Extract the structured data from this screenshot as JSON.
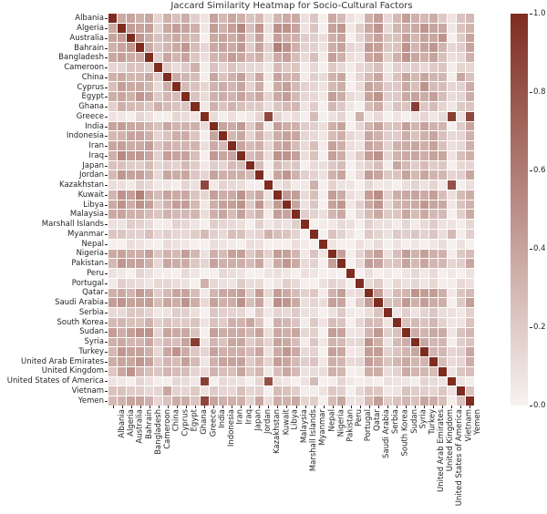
{
  "chart_data": {
    "type": "heatmap",
    "title": "Jaccard Similarity Heatmap for Socio-Cultural Factors",
    "categories": [
      "Albania",
      "Algeria",
      "Australia",
      "Bahrain",
      "Bangladesh",
      "Cameroon",
      "China",
      "Cyprus",
      "Egypt",
      "Ghana",
      "Greece",
      "India",
      "Indonesia",
      "Iran",
      "Iraq",
      "Japan",
      "Jordan",
      "Kazakhstan",
      "Kuwait",
      "Libya",
      "Malaysia",
      "Marshall Islands",
      "Myanmar",
      "Nepal",
      "Nigeria",
      "Pakistan",
      "Peru",
      "Portugal",
      "Qatar",
      "Saudi Arabia",
      "Serbia",
      "South Korea",
      "Sudan",
      "Syria",
      "Turkey",
      "United Arab Emirates",
      "United Kingdom",
      "United States of America",
      "Vietnam",
      "Yemen"
    ],
    "xlabel": "",
    "ylabel": "",
    "value_range": [
      0.0,
      1.0
    ],
    "diagonal_value": 1.0,
    "legend_position": "right-colorbar",
    "grid": "white-gridlines",
    "colorbar": {
      "ticks": [
        "1.0",
        "0.8",
        "0.6",
        "0.4",
        "0.2",
        "0.0"
      ],
      "top_value": 1.0,
      "bottom_value": 0.0
    },
    "colors": {
      "low": "#f7f2f0",
      "high": "#7e2c20",
      "background": "#ffffff",
      "gridline": "#ffffff",
      "tick_text": "#262626",
      "title_text": "#333333"
    },
    "row_intensity": [
      0.45,
      0.55,
      0.5,
      0.55,
      0.5,
      0.25,
      0.45,
      0.45,
      0.5,
      0.35,
      0.1,
      0.5,
      0.45,
      0.5,
      0.55,
      0.3,
      0.5,
      0.12,
      0.55,
      0.55,
      0.45,
      0.15,
      0.25,
      0.06,
      0.5,
      0.5,
      0.08,
      0.15,
      0.5,
      0.55,
      0.2,
      0.35,
      0.5,
      0.45,
      0.5,
      0.5,
      0.4,
      0.1,
      0.25,
      0.45
    ],
    "notable_pairs": [
      {
        "a": "Ghana",
        "b": "Syria",
        "value": 0.9
      },
      {
        "a": "Greece",
        "b": "Kazakhstan",
        "value": 0.85
      },
      {
        "a": "Greece",
        "b": "United States of America",
        "value": 0.9
      },
      {
        "a": "Greece",
        "b": "Yemen",
        "value": 0.85
      },
      {
        "a": "Kazakhstan",
        "b": "United States of America",
        "value": 0.8
      },
      {
        "a": "Bahrain",
        "b": "Kuwait",
        "value": 0.55
      },
      {
        "a": "Algeria",
        "b": "Iraq",
        "value": 0.5
      },
      {
        "a": "Algeria",
        "b": "Libya",
        "value": 0.45
      },
      {
        "a": "Cyprus",
        "b": "Turkey",
        "value": 0.45
      },
      {
        "a": "Egypt",
        "b": "Saudi Arabia",
        "value": 0.45
      },
      {
        "a": "Australia",
        "b": "United Kingdom",
        "value": 0.45
      },
      {
        "a": "Iraq",
        "b": "Kuwait",
        "value": 0.45
      },
      {
        "a": "Iraq",
        "b": "Libya",
        "value": 0.45
      },
      {
        "a": "China",
        "b": "Vietnam",
        "value": 0.35
      },
      {
        "a": "Japan",
        "b": "South Korea",
        "value": 0.35
      },
      {
        "a": "Kazakhstan",
        "b": "Myanmar",
        "value": 0.3
      },
      {
        "a": "Greece",
        "b": "Myanmar",
        "value": 0.25
      },
      {
        "a": "Myanmar",
        "b": "United States of America",
        "value": 0.25
      },
      {
        "a": "Greece",
        "b": "Portugal",
        "value": 0.3
      },
      {
        "a": "Qatar",
        "b": "Syria",
        "value": 0.45
      },
      {
        "a": "Bahrain",
        "b": "Sudan",
        "value": 0.45
      },
      {
        "a": "Bangladesh",
        "b": "Sudan",
        "value": 0.45
      },
      {
        "a": "Albania",
        "b": "Sudan",
        "value": 0.4
      },
      {
        "a": "Australia",
        "b": "United Arab Emirates",
        "value": 0.35
      },
      {
        "a": "Bangladesh",
        "b": "Saudi Arabia",
        "value": 0.4
      },
      {
        "a": "Kuwait",
        "b": "Qatar",
        "value": 0.4
      },
      {
        "a": "Iraq",
        "b": "Qatar",
        "value": 0.4
      },
      {
        "a": "Qatar",
        "b": "United Arab Emirates",
        "value": 0.4
      },
      {
        "a": "China",
        "b": "India",
        "value": 0.35
      },
      {
        "a": "Indonesia",
        "b": "Malaysia",
        "value": 0.35
      },
      {
        "a": "Egypt",
        "b": "Jordan",
        "value": 0.35
      },
      {
        "a": "Albania",
        "b": "Bahrain",
        "value": 0.3
      },
      {
        "a": "Cameroon",
        "b": "Ghana",
        "value": 0.3
      },
      {
        "a": "Jordan",
        "b": "Kuwait",
        "value": 0.35
      }
    ],
    "texture": {
      "scale": 1.35,
      "jitter": 0.06,
      "min": 0.01,
      "max": 0.5
    }
  }
}
